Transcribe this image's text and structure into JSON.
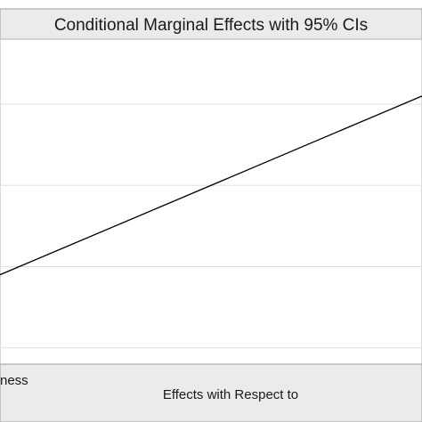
{
  "chart_data": {
    "type": "line",
    "title": "Conditional Marginal Effects with 95% CIs",
    "xlabel": "Effects with Respect to",
    "ylabel": "",
    "legend": {
      "position": "bottom",
      "entries": [
        "ness"
      ]
    },
    "grid": true,
    "y_gridlines": [
      1,
      2,
      3,
      4
    ],
    "ylim": [
      0.8,
      4.8
    ],
    "xlim": [
      0,
      1
    ],
    "series": [
      {
        "values": [
          {
            "x": 0,
            "y": 1.9
          },
          {
            "x": 1,
            "y": 4.1
          }
        ]
      }
    ]
  }
}
